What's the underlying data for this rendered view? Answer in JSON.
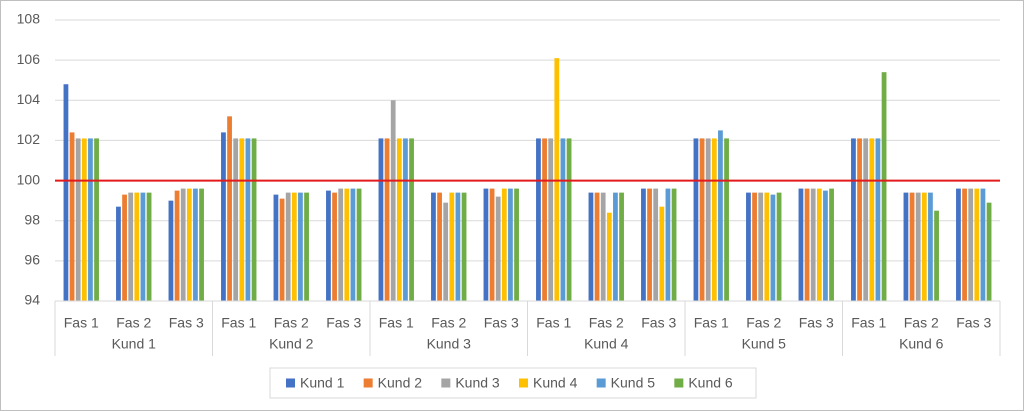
{
  "chart_data": {
    "type": "bar",
    "categories": [
      "Fas 1",
      "Fas 2",
      "Fas 3",
      "Fas 1",
      "Fas 2",
      "Fas 3",
      "Fas 1",
      "Fas 2",
      "Fas 3",
      "Fas 1",
      "Fas 2",
      "Fas 3",
      "Fas 1",
      "Fas 2",
      "Fas 3",
      "Fas 1",
      "Fas 2",
      "Fas 3"
    ],
    "groups": [
      "Kund 1",
      "Kund 2",
      "Kund 3",
      "Kund 4",
      "Kund 5",
      "Kund 6"
    ],
    "series": [
      {
        "name": "Kund 1",
        "color": "#4472c4",
        "values": [
          104.8,
          98.7,
          99.0,
          102.4,
          99.3,
          99.5,
          102.1,
          99.4,
          99.6,
          102.1,
          99.4,
          99.6,
          102.1,
          99.4,
          99.6,
          102.1,
          99.4,
          99.6
        ]
      },
      {
        "name": "Kund 2",
        "color": "#ed7d31",
        "values": [
          102.4,
          99.3,
          99.5,
          103.2,
          99.1,
          99.4,
          102.1,
          99.4,
          99.6,
          102.1,
          99.4,
          99.6,
          102.1,
          99.4,
          99.6,
          102.1,
          99.4,
          99.6
        ]
      },
      {
        "name": "Kund 3",
        "color": "#a5a5a5",
        "values": [
          102.1,
          99.4,
          99.6,
          102.1,
          99.4,
          99.6,
          104.0,
          98.9,
          99.2,
          102.1,
          99.4,
          99.6,
          102.1,
          99.4,
          99.6,
          102.1,
          99.4,
          99.6
        ]
      },
      {
        "name": "Kund 4",
        "color": "#ffc000",
        "values": [
          102.1,
          99.4,
          99.6,
          102.1,
          99.4,
          99.6,
          102.1,
          99.4,
          99.6,
          106.1,
          98.4,
          98.7,
          102.1,
          99.4,
          99.6,
          102.1,
          99.4,
          99.6
        ]
      },
      {
        "name": "Kund 5",
        "color": "#5b9bd5",
        "values": [
          102.1,
          99.4,
          99.6,
          102.1,
          99.4,
          99.6,
          102.1,
          99.4,
          99.6,
          102.1,
          99.4,
          99.6,
          102.5,
          99.3,
          99.5,
          102.1,
          99.4,
          99.6
        ]
      },
      {
        "name": "Kund 6",
        "color": "#70ad47",
        "values": [
          102.1,
          99.4,
          99.6,
          102.1,
          99.4,
          99.6,
          102.1,
          99.4,
          99.6,
          102.1,
          99.4,
          99.6,
          102.1,
          99.4,
          99.6,
          105.4,
          98.5,
          98.9
        ]
      }
    ],
    "reference_line": 100,
    "reference_color": "#e31a1c",
    "ylim": [
      94,
      108
    ],
    "yticks": [
      94,
      96,
      98,
      100,
      102,
      104,
      106,
      108
    ],
    "grid": true,
    "legend": "bottom"
  }
}
